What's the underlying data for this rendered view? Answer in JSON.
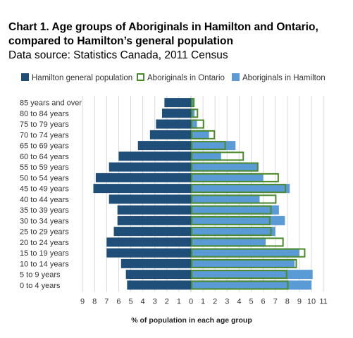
{
  "chart_data": {
    "type": "bar",
    "orientation": "horizontal-population-pyramid",
    "title_lines": [
      "Chart 1. Age groups of Aboriginals in Hamilton and Ontario,",
      "compared to Hamilton’s general population"
    ],
    "subtitle": "Data source: Statistics Canada, 2011 Census",
    "xlabel": "% of population in each age group",
    "categories": [
      "85 years and over",
      "80 to 84 years",
      "75 to 79 years",
      "70 to 74 years",
      "65 to 69 years",
      "60 to 64 years",
      "55 to 59 years",
      "50 to 54 years",
      "45 to 49 years",
      "40 to 44 years",
      "35 to 39 years",
      "30 to 34 years",
      "25 to 29 years",
      "20 to 24 years",
      "15 to 19 years",
      "10 to 14 years",
      "5 to 9 years",
      "0 to 4 years"
    ],
    "x_ticks_left": [
      "9",
      "8",
      "7",
      "6",
      "5",
      "4",
      "3",
      "2",
      "1",
      "0"
    ],
    "x_ticks_right": [
      "1",
      "2",
      "3",
      "4",
      "5",
      "6",
      "7",
      "8",
      "9",
      "10",
      "11"
    ],
    "xlim_left": 9,
    "xlim_right": 11,
    "legend_position": "top",
    "series": [
      {
        "name": "Hamilton general population",
        "side": "left",
        "style": "filled",
        "color": "#1f4e79",
        "values": [
          2.2,
          2.4,
          2.9,
          3.4,
          4.4,
          6.0,
          6.8,
          7.9,
          8.1,
          6.8,
          6.1,
          6.1,
          6.4,
          7.0,
          7.0,
          5.8,
          5.4,
          5.3
        ]
      },
      {
        "name": "Aboriginals in Ontario",
        "side": "right",
        "style": "outline",
        "color": "#4b8a2a",
        "values": [
          0.3,
          0.6,
          1.1,
          2.0,
          2.9,
          4.4,
          5.6,
          7.3,
          7.9,
          7.1,
          6.7,
          6.6,
          6.7,
          7.7,
          9.5,
          8.8,
          8.0,
          8.1
        ]
      },
      {
        "name": "Aboriginals in Hamilton",
        "side": "right",
        "style": "filled",
        "color": "#5b9bd5",
        "values": [
          0.2,
          0.3,
          0.5,
          1.5,
          3.7,
          2.5,
          5.6,
          6.0,
          8.2,
          5.7,
          7.3,
          7.8,
          7.0,
          6.2,
          9.0,
          8.6,
          10.1,
          10.0
        ]
      }
    ]
  }
}
